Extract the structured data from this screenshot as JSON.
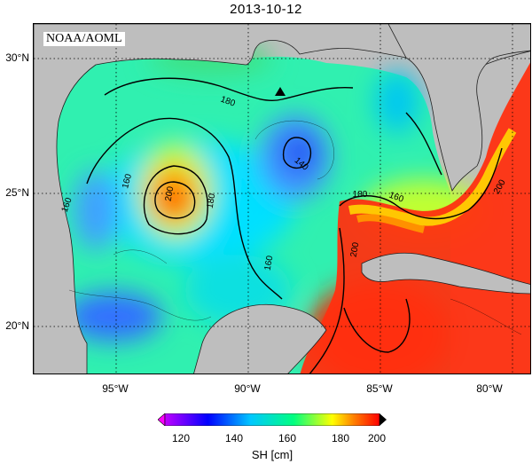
{
  "title": "2013-10-12",
  "credit": "NOAA/AOML",
  "lat_ticks": [
    "30°N",
    "25°N",
    "20°N"
  ],
  "lon_ticks": [
    "95°W",
    "90°W",
    "85°W",
    "80°W"
  ],
  "contour_labels": [
    "180",
    "160",
    "160",
    "200",
    "180",
    "140",
    "160",
    "180",
    "160",
    "200",
    "200"
  ],
  "colorbar": {
    "ticks": [
      "120",
      "140",
      "160",
      "180",
      "200"
    ],
    "units": "SH [cm]",
    "colors": [
      "#c000ff",
      "#0000ff",
      "#00c8ff",
      "#00ff80",
      "#ffff00",
      "#ff8000",
      "#ff0000"
    ]
  },
  "land_color": "#bebebe",
  "grid": "dotted"
}
